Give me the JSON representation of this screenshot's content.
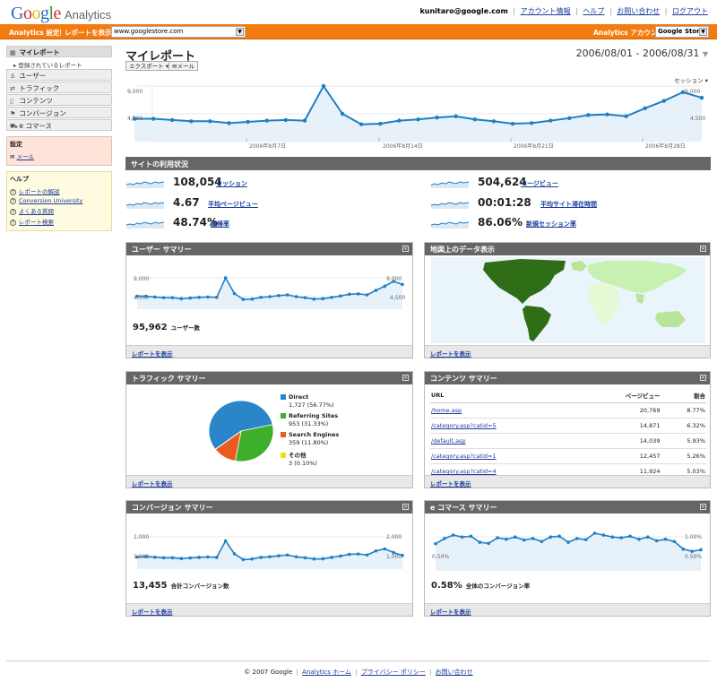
{
  "header": {
    "logo_google": "Google",
    "logo_analytics": "Analytics",
    "user_email": "kunitaro@google.com",
    "links": [
      "アカウント情報",
      "ヘルプ",
      "お問い合わせ",
      "ログアウト"
    ]
  },
  "orange_bar": {
    "settings_label": "Analytics 設定",
    "report_label": "レポートを表示:",
    "report_site": "www.googlestore.com",
    "account_label": "Analytics アカウント:",
    "account_value": "Google Store"
  },
  "sidebar": {
    "items": [
      {
        "label": "マイレポート",
        "icon": "grid-icon"
      },
      {
        "label": "ユーザー",
        "icon": "user-icon"
      },
      {
        "label": "トラフィック",
        "icon": "traffic-icon"
      },
      {
        "label": "コンテンツ",
        "icon": "page-icon"
      },
      {
        "label": "コンバージョン",
        "icon": "flag-icon"
      },
      {
        "label": "e コマース",
        "icon": "cart-icon"
      }
    ],
    "sub_item": "登録されているレポート",
    "settings": {
      "title": "設定",
      "items": [
        "メール"
      ]
    },
    "help": {
      "title": "ヘルプ",
      "items": [
        "レポートの解説",
        "Conversion University",
        "よくある質問",
        "レポート検索"
      ]
    }
  },
  "page": {
    "title": "マイレポート",
    "export_button": "エクスポート ▾",
    "mail_button": "メール",
    "date_range": "2006/08/01 - 2006/08/31",
    "session_selector": "セッション ▾"
  },
  "main_chart": {
    "y_ticks": [
      "9,000",
      "4,500"
    ],
    "x_ticks": [
      "2006年8月7日",
      "2006年8月14日",
      "2006年8月21日",
      "2006年8月28日"
    ],
    "chart_data": {
      "type": "area",
      "x": [
        1,
        2,
        3,
        4,
        5,
        6,
        7,
        8,
        9,
        10,
        11,
        12,
        13,
        14,
        15,
        16,
        17,
        18,
        19,
        20,
        21,
        22,
        23,
        24,
        25,
        26,
        27,
        28,
        29,
        30,
        31
      ],
      "ylim": [
        0,
        9000
      ],
      "series": [
        {
          "values": [
            3700,
            3700,
            3500,
            3300,
            3300,
            3000,
            3200,
            3400,
            3500,
            3400,
            9000,
            4500,
            2800,
            2900,
            3400,
            3600,
            3900,
            4100,
            3600,
            3300,
            2900,
            3000,
            3400,
            3800,
            4300,
            4400,
            4100,
            5400,
            6600,
            8000,
            7100
          ]
        }
      ]
    }
  },
  "usage": {
    "title": "サイトの利用状況",
    "metrics": [
      {
        "value": "108,054",
        "label": "セッション"
      },
      {
        "value": "4.67",
        "label": "平均ページビュー"
      },
      {
        "value": "48.74%",
        "label": "直帰率"
      },
      {
        "value": "504,624",
        "label": "ページビュー"
      },
      {
        "value": "00:01:28",
        "label": "平均サイト滞在時間"
      },
      {
        "value": "86.06%",
        "label": "新規セッション率"
      }
    ]
  },
  "user_summary": {
    "title": "ユーザー サマリー",
    "y_ticks": [
      "9,000",
      "4,500"
    ],
    "total": "95,962",
    "total_label": "ユーザー数",
    "footer": "レポートを表示",
    "chart_data": {
      "type": "line",
      "ylim": [
        0,
        9000
      ],
      "series": [
        {
          "values": [
            3700,
            3700,
            3500,
            3300,
            3300,
            3000,
            3200,
            3400,
            3500,
            3400,
            9000,
            4500,
            2800,
            2900,
            3400,
            3600,
            3900,
            4100,
            3600,
            3300,
            2900,
            3000,
            3400,
            3800,
            4300,
            4400,
            4100,
            5400,
            6600,
            8000,
            7100
          ]
        }
      ]
    }
  },
  "map_summary": {
    "title": "地図上のデータ表示",
    "footer": "レポートを表示"
  },
  "traffic_summary": {
    "title": "トラフィック サマリー",
    "footer": "レポートを表示",
    "chart_data": {
      "type": "pie",
      "categories": [
        "Direct",
        "Referring Sites",
        "Search Engines",
        "その他"
      ],
      "values": [
        1727,
        953,
        359,
        3
      ],
      "labels": [
        "1,727 (56.77%)",
        "953 (31.33%)",
        "359 (11.80%)",
        "3 (0.10%)"
      ],
      "colors": [
        "#2a86c8",
        "#3fae2a",
        "#ec5a1f",
        "#f0e010"
      ]
    }
  },
  "content_summary": {
    "title": "コンテンツ サマリー",
    "columns": [
      "URL",
      "ページビュー",
      "割合"
    ],
    "rows": [
      [
        "/home.asp",
        "20,769",
        "8.77%"
      ],
      [
        "/category.asp?catid=5",
        "14,871",
        "6.32%"
      ],
      [
        "/default.asp",
        "14,039",
        "5.93%"
      ],
      [
        "/category.asp?catid=1",
        "12,457",
        "5.26%"
      ],
      [
        "/category.asp?catid=4",
        "11,924",
        "5.03%"
      ]
    ],
    "footer": "レポートを表示"
  },
  "conversion_summary": {
    "title": "コンバージョン サマリー",
    "y_ticks": [
      "2,000",
      "1,000"
    ],
    "total": "13,455",
    "total_label": "合計コンバージョン数",
    "footer": "レポートを表示",
    "chart_data": {
      "type": "line",
      "ylim": [
        0,
        2000
      ],
      "series": [
        {
          "values": [
            600,
            620,
            590,
            560,
            560,
            520,
            550,
            580,
            600,
            580,
            1400,
            760,
            470,
            500,
            580,
            610,
            660,
            700,
            610,
            560,
            500,
            510,
            580,
            650,
            730,
            750,
            700,
            900,
            1000,
            820,
            680
          ]
        }
      ]
    }
  },
  "ecommerce_summary": {
    "title": "e コマース サマリー",
    "y_ticks": [
      "1.00%",
      "0.50%"
    ],
    "total": "0.58%",
    "total_label": "全体のコンバージョン率",
    "footer": "レポートを表示",
    "chart_data": {
      "type": "line",
      "ylim": [
        0,
        1.0
      ],
      "series": [
        {
          "values": [
            0.72,
            0.86,
            0.95,
            0.9,
            0.92,
            0.76,
            0.73,
            0.88,
            0.84,
            0.9,
            0.82,
            0.86,
            0.78,
            0.9,
            0.92,
            0.76,
            0.86,
            0.83,
            1.0,
            0.95,
            0.9,
            0.88,
            0.92,
            0.84,
            0.9,
            0.8,
            0.84,
            0.78,
            0.58,
            0.52,
            0.56
          ]
        }
      ]
    }
  },
  "footer": {
    "copyright": "© 2007 Google",
    "links": [
      "Analytics ホーム",
      "プライバシー ポリシー",
      "お問い合わせ"
    ]
  }
}
